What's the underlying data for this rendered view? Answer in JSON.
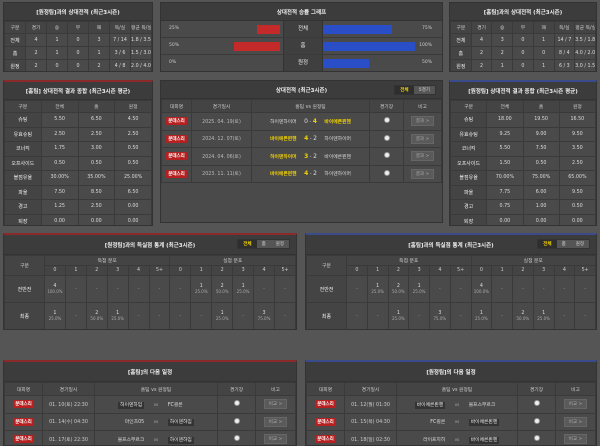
{
  "colors": {
    "red_bar": "#c42a2a",
    "blue_bar": "#2a4ec8",
    "accent": "#f2d200",
    "badge": "#b62020"
  },
  "h2h_away": {
    "title": "[원정팀]과의 상대전적 (최근3시즌)",
    "headers": [
      "구분",
      "경기",
      "승",
      "무",
      "패",
      "득/실",
      "평균 득/실"
    ],
    "rows": [
      [
        "전체",
        "4",
        "1",
        "0",
        "3",
        "7 / 14",
        "1.8 / 3.5"
      ],
      [
        "홈",
        "2",
        "1",
        "0",
        "1",
        "3 / 6",
        "1.5 / 3.0"
      ],
      [
        "원정",
        "2",
        "0",
        "0",
        "2",
        "4 / 8",
        "2.0 / 4.0"
      ]
    ]
  },
  "graph": {
    "title": "상대전적 승률 그래프",
    "rows": [
      {
        "label": "전체",
        "left": "25%",
        "left_value": 25,
        "right": "75%",
        "right_value": 75
      },
      {
        "label": "홈",
        "left": "50%",
        "left_value": 50,
        "right": "100%",
        "right_value": 100
      },
      {
        "label": "원정",
        "left": "0%",
        "left_value": 0,
        "right": "50%",
        "right_value": 50
      }
    ]
  },
  "h2h_home": {
    "title": "[홈팀]과의 상대전적 (최근3시즌)",
    "headers": [
      "구분",
      "경기",
      "승",
      "무",
      "패",
      "득/실",
      "평균 득/실"
    ],
    "rows": [
      [
        "전체",
        "4",
        "3",
        "0",
        "1",
        "14 / 7",
        "3.5 / 1.8"
      ],
      [
        "홈",
        "2",
        "2",
        "0",
        "0",
        "8 / 4",
        "4.0 / 2.0"
      ],
      [
        "원정",
        "2",
        "1",
        "0",
        "1",
        "6 / 3",
        "3.0 / 1.5"
      ]
    ]
  },
  "summary_left": {
    "title": "[홈팀] 상대전적 결과 종합 (최근3시즌 평균)",
    "headers": [
      "구분",
      "전체",
      "홈",
      "원정"
    ],
    "rows": [
      [
        "슈팅",
        "5.50",
        "6.50",
        "4.50"
      ],
      [
        "유효슈팅",
        "2.50",
        "2.50",
        "2.50"
      ],
      [
        "코너킥",
        "1.75",
        "3.00",
        "0.50"
      ],
      [
        "오프사이드",
        "0.50",
        "0.50",
        "0.50"
      ],
      [
        "볼점유율",
        "30.00%",
        "35.00%",
        "25.00%"
      ],
      [
        "파울",
        "7.50",
        "8.50",
        "6.50"
      ],
      [
        "경고",
        "1.25",
        "2.50",
        "0.00"
      ],
      [
        "퇴장",
        "0.00",
        "0.00",
        "0.00"
      ]
    ]
  },
  "summary_right": {
    "title": "[원정팀] 상대전적 결과 종합 (최근3시즌 평균)",
    "headers": [
      "구분",
      "전체",
      "홈",
      "원정"
    ],
    "rows": [
      [
        "슈팅",
        "18.00",
        "19.50",
        "16.50"
      ],
      [
        "유효슈팅",
        "9.25",
        "9.00",
        "9.50"
      ],
      [
        "코너킥",
        "5.50",
        "7.50",
        "3.50"
      ],
      [
        "오프사이드",
        "1.50",
        "0.50",
        "2.50"
      ],
      [
        "볼점유율",
        "70.00%",
        "75.00%",
        "65.00%"
      ],
      [
        "파울",
        "7.75",
        "6.00",
        "9.50"
      ],
      [
        "경고",
        "0.75",
        "1.00",
        "0.50"
      ],
      [
        "퇴장",
        "0.00",
        "0.00",
        "0.00"
      ]
    ]
  },
  "matches": {
    "title": "상대전적 (최근3시즌)",
    "toggle": [
      "전체",
      "5경기"
    ],
    "headers": [
      "대회명",
      "경기일시",
      "홈팀  vs  원정팀",
      "경기장",
      "비고"
    ],
    "rows": [
      {
        "league": "분데스리",
        "date": "2025. 04. 19(토)",
        "home": "하이덴하이머",
        "hs": "0",
        "as": "4",
        "away": "바이에른뮌헨",
        "winner": "away",
        "btn": "결과 >"
      },
      {
        "league": "분데스리",
        "date": "2024. 12. 07(토)",
        "home": "바이에른뮌헨",
        "hs": "4",
        "as": "2",
        "away": "하이덴하이머",
        "winner": "home",
        "btn": "결과 >"
      },
      {
        "league": "분데스리",
        "date": "2024. 04. 06(토)",
        "home": "하이덴하이머",
        "hs": "3",
        "as": "2",
        "away": "바이에른뮌헨",
        "winner": "home",
        "btn": "결과 >"
      },
      {
        "league": "분데스리",
        "date": "2023. 11. 11(토)",
        "home": "바이에른뮌헨",
        "hs": "4",
        "as": "2",
        "away": "하이덴하이머",
        "winner": "home",
        "btn": "결과 >"
      }
    ]
  },
  "goals_left": {
    "title": "[원정팀]과의 득실점 통계 (최근3시즌)",
    "toggle": [
      "전체",
      "홈",
      "원정"
    ],
    "col": "구분",
    "scored": "득점 분포",
    "conceded": "실점 분포",
    "bins": [
      "0",
      "1",
      "2",
      "3",
      "4",
      "5+"
    ],
    "rows": [
      {
        "label": "전반전",
        "cells": [
          [
            "4",
            "100.0%"
          ],
          [
            "-",
            ""
          ],
          [
            "-",
            ""
          ],
          [
            "-",
            ""
          ],
          [
            "-",
            ""
          ],
          [
            "-",
            ""
          ],
          [
            "-",
            ""
          ],
          [
            "1",
            "25.0%"
          ],
          [
            "2",
            "50.0%"
          ],
          [
            "1",
            "25.0%"
          ],
          [
            "-",
            ""
          ],
          [
            "-",
            ""
          ]
        ]
      },
      {
        "label": "최종",
        "cells": [
          [
            "1",
            "25.0%"
          ],
          [
            "-",
            ""
          ],
          [
            "2",
            "50.0%"
          ],
          [
            "1",
            "25.0%"
          ],
          [
            "-",
            ""
          ],
          [
            "-",
            ""
          ],
          [
            "-",
            ""
          ],
          [
            "-",
            ""
          ],
          [
            "1",
            "25.0%"
          ],
          [
            "-",
            ""
          ],
          [
            "3",
            "75.0%"
          ],
          [
            "-",
            ""
          ]
        ]
      }
    ]
  },
  "goals_right": {
    "title": "[홈팀]과의 득실점 통계 (최근3시즌)",
    "toggle": [
      "전체",
      "홈",
      "원정"
    ],
    "col": "구분",
    "scored": "득점 분포",
    "conceded": "실점 분포",
    "bins": [
      "0",
      "1",
      "2",
      "3",
      "4",
      "5+"
    ],
    "rows": [
      {
        "label": "전반전",
        "cells": [
          [
            "-",
            ""
          ],
          [
            "1",
            "25.0%"
          ],
          [
            "2",
            "50.0%"
          ],
          [
            "1",
            "25.0%"
          ],
          [
            "-",
            ""
          ],
          [
            "-",
            ""
          ],
          [
            "4",
            "100.0%"
          ],
          [
            "-",
            ""
          ],
          [
            "-",
            ""
          ],
          [
            "-",
            ""
          ],
          [
            "-",
            ""
          ],
          [
            "-",
            ""
          ]
        ]
      },
      {
        "label": "최종",
        "cells": [
          [
            "-",
            ""
          ],
          [
            "-",
            ""
          ],
          [
            "1",
            "25.0%"
          ],
          [
            "-",
            ""
          ],
          [
            "3",
            "75.0%"
          ],
          [
            "-",
            ""
          ],
          [
            "1",
            "25.0%"
          ],
          [
            "-",
            ""
          ],
          [
            "2",
            "50.0%"
          ],
          [
            "1",
            "25.0%"
          ],
          [
            "-",
            ""
          ],
          [
            "-",
            ""
          ]
        ]
      }
    ]
  },
  "next_left": {
    "title": "[홈팀]의 다음 일정",
    "headers": [
      "대회명",
      "경기일시",
      "홈팀  vs  원정팀",
      "경기장",
      "비고"
    ],
    "vs": "vs",
    "rows": [
      {
        "league": "분데스리",
        "date": "01. 10(토) 22:30",
        "home": "하이덴하임",
        "away": "FC쾰른",
        "focus": "home",
        "btn": "비교 >"
      },
      {
        "league": "분데스리",
        "date": "01. 14(수) 04:30",
        "home": "마인츠05",
        "away": "하이덴하임",
        "focus": "away",
        "btn": "비교 >"
      },
      {
        "league": "분데스리",
        "date": "01. 17(토) 22:30",
        "home": "볼프스부르크",
        "away": "하이덴하임",
        "focus": "away",
        "btn": "비교 >"
      }
    ]
  },
  "next_right": {
    "title": "[원정팀]의 다음 일정",
    "headers": [
      "대회명",
      "경기일시",
      "홈팀  vs  원정팀",
      "경기장",
      "비고"
    ],
    "vs": "vs",
    "rows": [
      {
        "league": "분데스리",
        "date": "01. 12(월) 01:30",
        "home": "바이에른뮌헨",
        "away": "볼프스부르크",
        "focus": "home",
        "btn": "비교 >"
      },
      {
        "league": "분데스리",
        "date": "01. 15(목) 04:30",
        "home": "FC쾰른",
        "away": "바이에른뮌헨",
        "focus": "away",
        "btn": "비교 >"
      },
      {
        "league": "분데스리",
        "date": "01. 18(일) 02:30",
        "home": "라이프치히",
        "away": "바이에른뮌헨",
        "focus": "away",
        "btn": "비교 >"
      }
    ]
  }
}
